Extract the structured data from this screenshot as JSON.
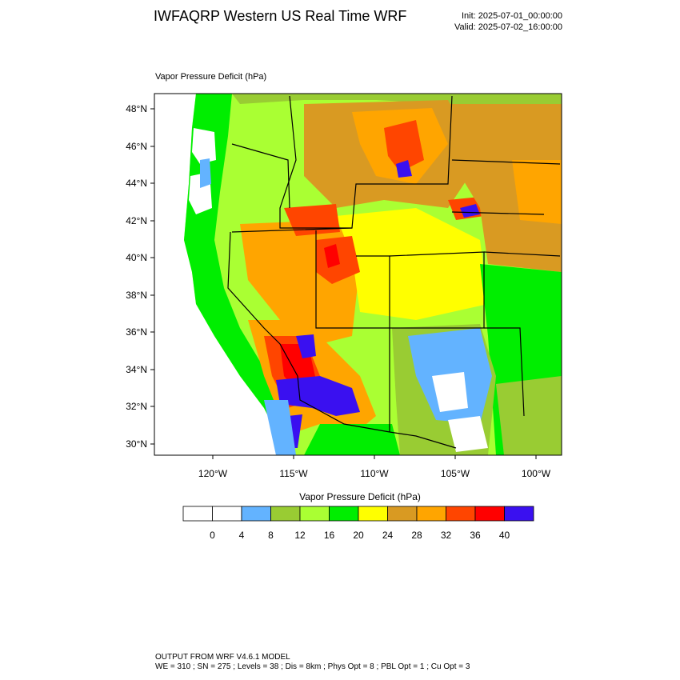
{
  "header": {
    "title": "IWFAQRP Western US Real Time WRF",
    "init": "Init: 2025-07-01_00:00:00",
    "valid": "Valid: 2025-07-02_16:00:00"
  },
  "plot": {
    "label": "Vapor Pressure Deficit   (hPa)",
    "lat_labels": [
      "48°N",
      "46°N",
      "44°N",
      "42°N",
      "40°N",
      "38°N",
      "36°N",
      "34°N",
      "32°N",
      "30°N"
    ],
    "lon_labels": [
      "120°W",
      "115°W",
      "110°W",
      "105°W",
      "100°W"
    ]
  },
  "colorbar": {
    "title": "Vapor Pressure Deficit  (hPa)",
    "colors": [
      "#ffffff",
      "#ffffff",
      "#63b3ff",
      "#99cc33",
      "#aaff33",
      "#00ee00",
      "#ffff00",
      "#d99a22",
      "#ffa500",
      "#ff4500",
      "#ff0000",
      "#3a10f0"
    ],
    "tick_labels": [
      "0",
      "4",
      "8",
      "12",
      "16",
      "20",
      "24",
      "28",
      "32",
      "36",
      "40"
    ]
  },
  "footer": {
    "line1": "OUTPUT FROM WRF V4.6.1 MODEL",
    "line2": "WE = 310 ; SN = 275 ; Levels = 38 ; Dis = 8km ; Phys Opt = 8 ; PBL Opt = 1 ; Cu Opt = 3"
  }
}
